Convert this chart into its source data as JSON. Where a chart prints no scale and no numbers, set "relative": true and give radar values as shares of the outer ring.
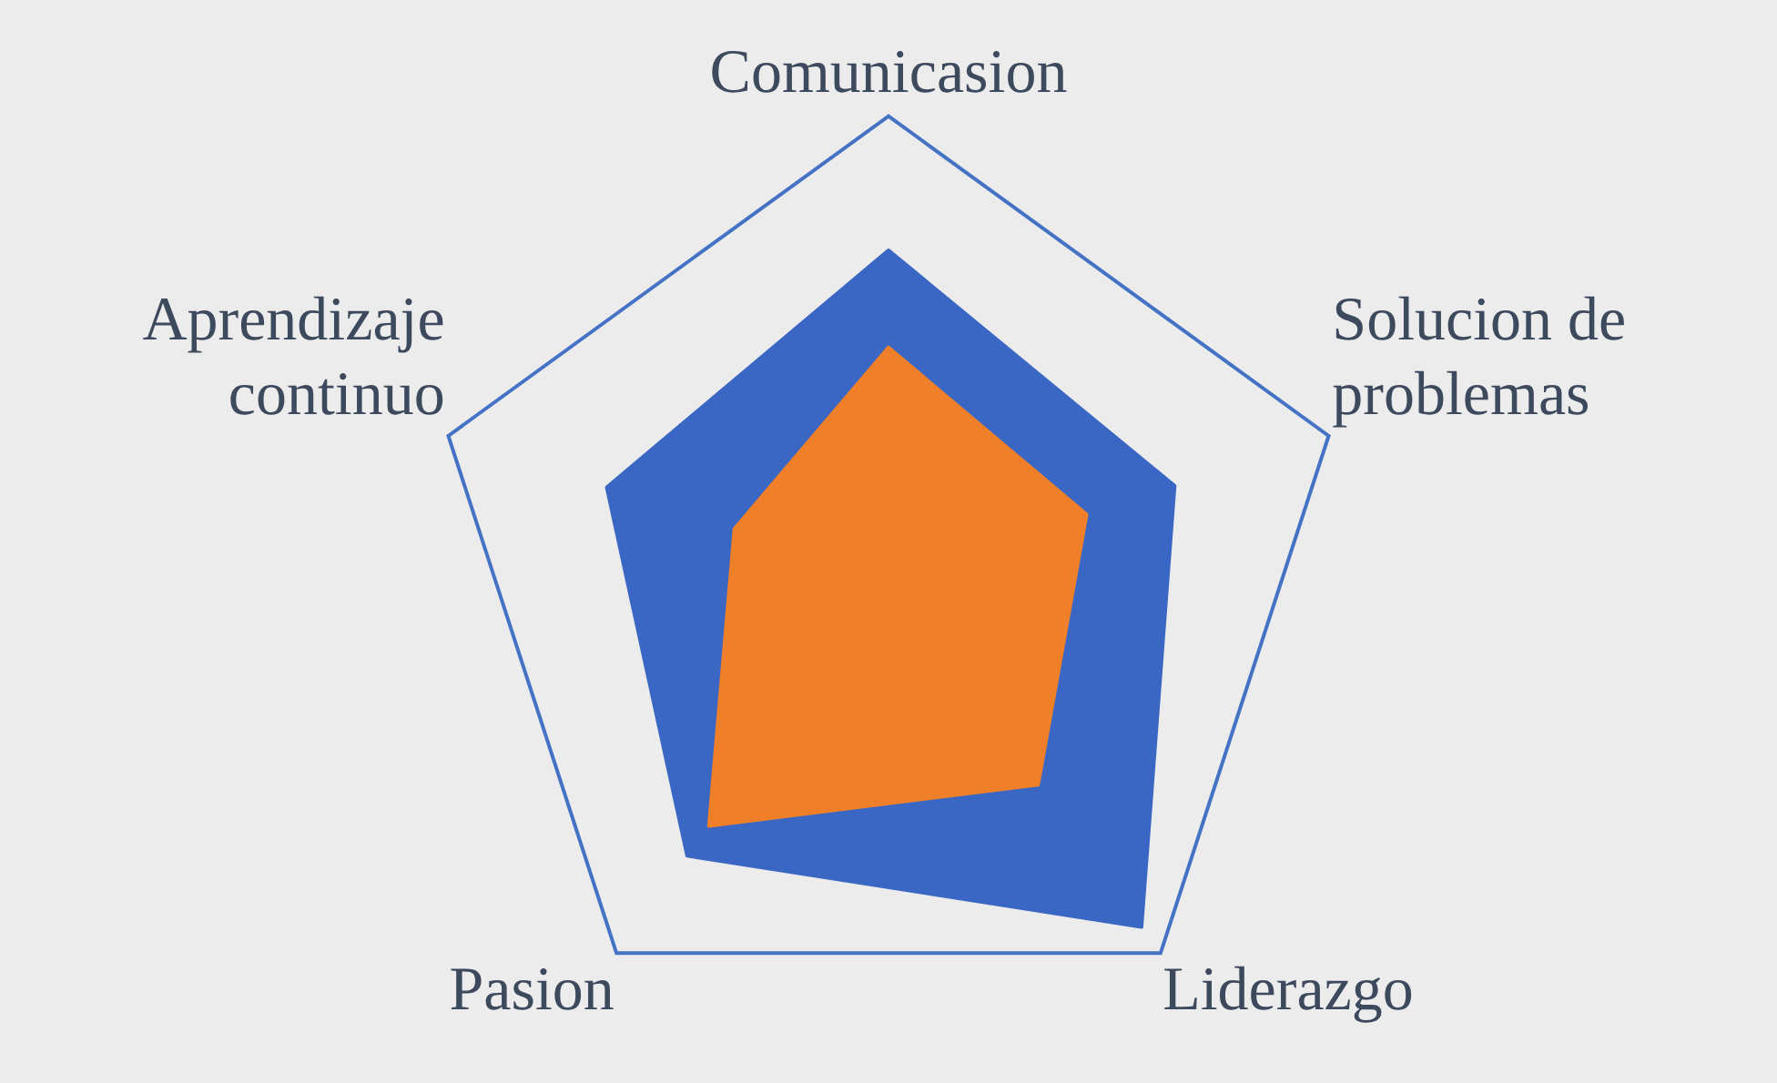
{
  "chart_data": {
    "type": "radar",
    "relative": true,
    "grid": true,
    "legend": false,
    "marker": "none",
    "categories": [
      "Comunicasion",
      "Solucion de problemas",
      "Liderazgo",
      "Pasion",
      "Aprendizaje continuo"
    ],
    "series": [
      {
        "color": "#3a66c4",
        "values": [
          0.71,
          0.65,
          0.93,
          0.74,
          0.64
        ]
      },
      {
        "color": "#f07f2a",
        "values": [
          0.5,
          0.45,
          0.55,
          0.66,
          0.35
        ]
      }
    ]
  }
}
